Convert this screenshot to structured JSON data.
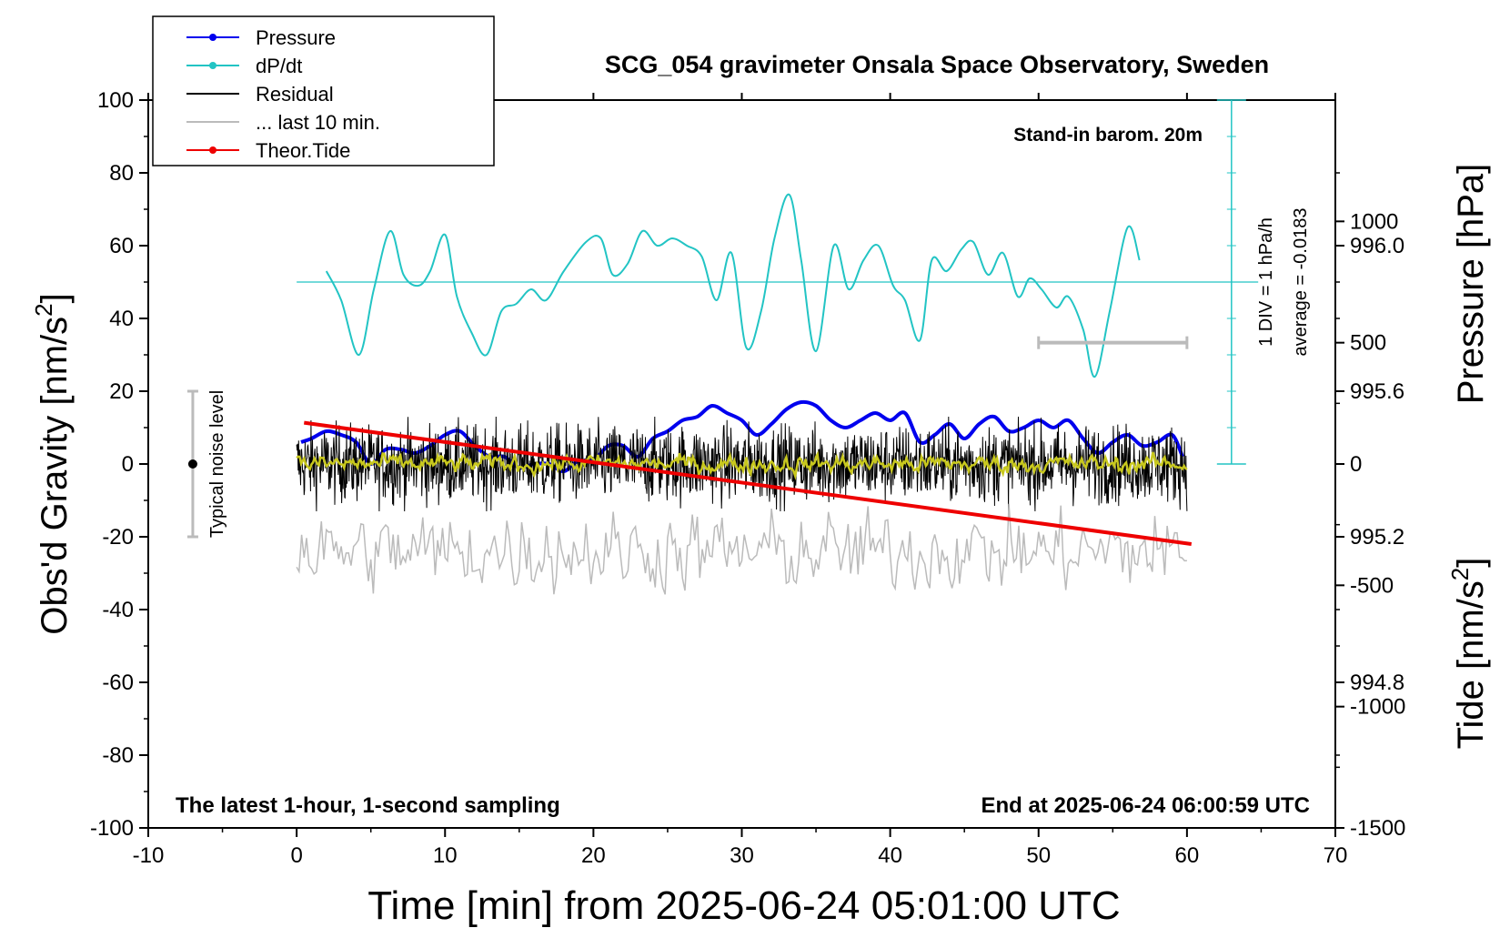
{
  "chart_data": {
    "type": "line",
    "title": "SCG_054 gravimeter Onsala Space Observatory, Sweden",
    "xlabel": "Time [min] from 2025-06-24 05:01:00 UTC",
    "ylabel_left": "Obs'd Gravity [nm/s",
    "ylabel_left_sup": "2",
    "ylabel_left_close": "]",
    "ylabel_right_top": "Pressure [hPa]",
    "ylabel_right_bottom": "Tide [nm/s",
    "ylabel_right_bottom_sup": "2",
    "ylabel_right_bottom_close": "]",
    "xlim": [
      -10,
      70
    ],
    "ylim_left": [
      -100,
      100
    ],
    "ylim_pressure": [
      994.4,
      996.4
    ],
    "ylim_tide": [
      -1500,
      1500
    ],
    "x_ticks": [
      "-10",
      "0",
      "10",
      "20",
      "30",
      "40",
      "50",
      "60",
      "70"
    ],
    "y_ticks_left": [
      "100",
      "80",
      "60",
      "40",
      "20",
      "0",
      "-20",
      "-40",
      "-60",
      "-80",
      "-100"
    ],
    "y_ticks_pressure": [
      "996.0",
      "995.6",
      "995.2",
      "994.8"
    ],
    "y_ticks_tide": [
      "1000",
      "500",
      "0",
      "-500",
      "-1000",
      "-1500"
    ],
    "legend": [
      {
        "name": "Pressure",
        "color": "#0000ee",
        "marker": true
      },
      {
        "name": "dP/dt",
        "color": "#22c4c4",
        "marker": true
      },
      {
        "name": "Residual",
        "color": "#000000",
        "marker": false
      },
      {
        "name": "... last 10 min.",
        "color": "#bbbbbb",
        "marker": false
      },
      {
        "name": "Theor.Tide",
        "color": "#ee0000",
        "marker": true
      }
    ],
    "annotations": {
      "barometer": "Stand-in barom. 20m",
      "div_label": "1 DIV = 1 hPa/h",
      "average_label": "average = -0.0183",
      "noise_label": "Typical noise level",
      "sampling": "The latest 1-hour, 1-second sampling",
      "end_time": "End at 2025-06-24 06:00:59 UTC"
    },
    "noise_bar": {
      "x": -7,
      "y_center": 0,
      "y_low": -20,
      "y_high": 20
    },
    "scale_bar_10min": {
      "x_start": 50,
      "x_end": 60,
      "tide_level": 500
    },
    "series": [
      {
        "name": "Pressure",
        "color": "#0000ee",
        "axis": "pressure",
        "x": [
          0.3,
          1,
          2,
          3,
          4,
          5,
          6,
          7,
          8,
          9,
          10,
          11,
          12,
          13,
          14,
          15,
          16,
          17,
          18,
          19,
          20,
          21,
          22,
          23,
          24,
          25,
          26,
          27,
          28,
          29,
          30,
          31,
          32,
          33,
          34,
          35,
          36,
          37,
          38,
          39,
          40,
          41,
          42,
          43,
          44,
          45,
          46,
          47,
          48,
          49,
          50,
          51,
          52,
          53,
          54,
          55,
          56,
          57,
          58,
          59,
          59.7
        ],
        "values": [
          995.46,
          995.47,
          995.49,
          995.48,
          995.46,
          995.4,
          995.44,
          995.44,
          995.43,
          995.45,
          995.48,
          995.49,
          995.45,
          995.42,
          995.42,
          995.39,
          995.4,
          995.4,
          995.38,
          995.41,
          995.41,
          995.45,
          995.45,
          995.42,
          995.47,
          995.49,
          995.52,
          995.53,
          995.56,
          995.54,
          995.52,
          995.48,
          995.51,
          995.55,
          995.57,
          995.56,
          995.52,
          995.5,
          995.52,
          995.54,
          995.52,
          995.54,
          995.46,
          995.48,
          995.51,
          995.47,
          995.51,
          995.53,
          995.49,
          995.5,
          995.52,
          995.5,
          995.52,
          995.47,
          995.43,
          995.46,
          995.48,
          995.45,
          995.46,
          995.48,
          995.42
        ]
      },
      {
        "name": "dP/dt",
        "color": "#22c4c4",
        "axis": "left",
        "x": [
          2.0,
          3.0,
          4.2,
          5.2,
          6.3,
          7.2,
          8.2,
          9.0,
          10.0,
          10.8,
          11.8,
          12.8,
          13.8,
          14.8,
          15.8,
          16.8,
          18.0,
          19.5,
          20.5,
          21.3,
          22.3,
          23.3,
          24.3,
          25.3,
          26.3,
          27.3,
          28.3,
          29.3,
          30.3,
          31.3,
          32.2,
          33.2,
          34.0,
          35.0,
          36.2,
          37.2,
          38.2,
          39.2,
          40.2,
          41.0,
          42.0,
          42.8,
          43.8,
          44.8,
          45.6,
          46.6,
          47.6,
          48.6,
          49.4,
          50.2,
          51.2,
          52.0,
          53.0,
          53.8,
          54.8,
          56.0,
          56.8
        ],
        "values": [
          53,
          45,
          30,
          48,
          64,
          52,
          49,
          53,
          63,
          46,
          36,
          30,
          42,
          44,
          48,
          45,
          53,
          61,
          62,
          52,
          55,
          64,
          60,
          62,
          60,
          57,
          45,
          58,
          32,
          42,
          62,
          74,
          56,
          31,
          60,
          48,
          56,
          60,
          49,
          45,
          34,
          56,
          53,
          59,
          61,
          52,
          58,
          46,
          51,
          48,
          43,
          46,
          37,
          24,
          42,
          65,
          56
        ]
      },
      {
        "name": "Residual",
        "color": "#000000",
        "axis": "left",
        "generated": "1-second noisy samples",
        "x_range": [
          0,
          60
        ],
        "amplitude": 7
      },
      {
        "name": "Residual (smoothed)",
        "color": "#c8c81e",
        "axis": "left",
        "x_range": [
          0,
          60
        ],
        "amplitude": 2
      },
      {
        "name": "... last 10 min.",
        "color": "#bbbbbb",
        "axis": "tide",
        "x_range": [
          0,
          60
        ],
        "center": -360,
        "amplitude": 180
      },
      {
        "name": "Theor.Tide",
        "color": "#ee0000",
        "axis": "tide",
        "x": [
          0.5,
          60.3
        ],
        "values": [
          170,
          -330
        ]
      }
    ]
  }
}
